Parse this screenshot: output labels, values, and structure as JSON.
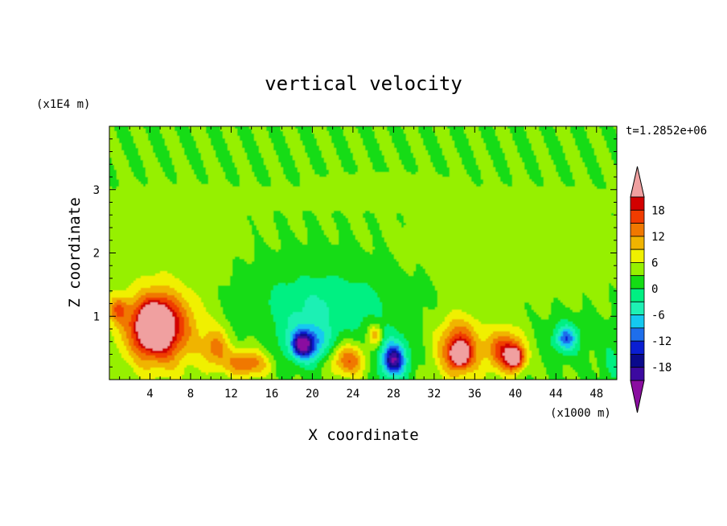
{
  "chart_data": {
    "type": "heatmap",
    "title": "vertical velocity",
    "xlabel": "X coordinate",
    "ylabel": "Z coordinate",
    "x_unit": "(x1000 m)",
    "y_unit": "(x1E4 m)",
    "time_label": "t=1.2852e+06",
    "xlim": [
      0,
      50
    ],
    "ylim": [
      0,
      4
    ],
    "x_ticks": [
      4,
      8,
      12,
      16,
      20,
      24,
      28,
      32,
      36,
      40,
      44,
      48
    ],
    "y_ticks": [
      1,
      2,
      3
    ],
    "colorbar": {
      "levels": [
        -21,
        -18,
        -15,
        -12,
        -9,
        -6,
        -3,
        0,
        3,
        6,
        9,
        12,
        15,
        18,
        21
      ],
      "tick_labels": [
        "18",
        "12",
        "6",
        "0",
        "-6",
        "-12",
        "-18"
      ],
      "tick_values": [
        18,
        12,
        6,
        0,
        -6,
        -12,
        -18
      ],
      "colors": [
        "#8a0ea0",
        "#3c0aa0",
        "#0a0a8c",
        "#0a1ed2",
        "#1e6eeb",
        "#14c8f0",
        "#1ef0b4",
        "#00f082",
        "#14dc14",
        "#96f000",
        "#f0f000",
        "#f0b400",
        "#f07800",
        "#f03c00",
        "#d20000",
        "#f0a0a0"
      ],
      "top_arrow": "#f0a0a0",
      "bottom_arrow": "#8a0ea0"
    },
    "background_value": 1,
    "features": [
      {
        "x": 5,
        "z": 0.8,
        "rx": 4.5,
        "rz": 0.75,
        "w": 5
      },
      {
        "x": 4.5,
        "z": 0.85,
        "rx": 2.2,
        "rz": 0.45,
        "w": 6
      },
      {
        "x": 4.2,
        "z": 0.85,
        "rx": 1.0,
        "rz": 0.25,
        "w": 7
      },
      {
        "x": 0.8,
        "z": 1.1,
        "rx": 1.2,
        "rz": 0.25,
        "w": 3
      },
      {
        "x": 13.5,
        "z": 0.25,
        "rx": 2.5,
        "rz": 0.25,
        "w": 4
      },
      {
        "x": 10.5,
        "z": 0.5,
        "rx": 1.5,
        "rz": 0.35,
        "w": 3
      },
      {
        "x": 19.5,
        "z": 0.6,
        "rx": 3.2,
        "rz": 0.45,
        "w": -2
      },
      {
        "x": 19.5,
        "z": 0.55,
        "rx": 2.0,
        "rz": 0.3,
        "w": -3
      },
      {
        "x": 19,
        "z": 0.55,
        "rx": 1.0,
        "rz": 0.2,
        "w": -5
      },
      {
        "x": 23.5,
        "z": 0.3,
        "rx": 2.0,
        "rz": 0.3,
        "w": 4
      },
      {
        "x": 26.2,
        "z": 0.7,
        "rx": 0.8,
        "rz": 0.2,
        "w": 3
      },
      {
        "x": 28,
        "z": 0.35,
        "rx": 2.0,
        "rz": 0.45,
        "w": -3
      },
      {
        "x": 28,
        "z": 0.3,
        "rx": 1.1,
        "rz": 0.25,
        "w": -5
      },
      {
        "x": 34.5,
        "z": 0.5,
        "rx": 2.5,
        "rz": 0.55,
        "w": 5
      },
      {
        "x": 34.5,
        "z": 0.4,
        "rx": 1.0,
        "rz": 0.2,
        "w": 6
      },
      {
        "x": 39,
        "z": 0.45,
        "rx": 2.0,
        "rz": 0.4,
        "w": 5
      },
      {
        "x": 40,
        "z": 0.35,
        "rx": 1.0,
        "rz": 0.2,
        "w": 6
      },
      {
        "x": 45,
        "z": 0.65,
        "rx": 2.0,
        "rz": 0.35,
        "w": -2
      },
      {
        "x": 45,
        "z": 0.65,
        "rx": 1.0,
        "rz": 0.2,
        "w": -3
      },
      {
        "x": 49.5,
        "z": 0.3,
        "rx": 1.5,
        "rz": 0.6,
        "w": -1
      },
      {
        "x": 21,
        "z": 1.2,
        "rx": 8.0,
        "rz": 0.6,
        "w": -2
      },
      {
        "x": 6,
        "z": 2.1,
        "rx": 7.0,
        "rz": 0.7,
        "w": 0.4
      },
      {
        "x": 40,
        "z": 1.9,
        "rx": 11.0,
        "rz": 0.75,
        "w": 0.4
      },
      {
        "x": 25,
        "z": 2.85,
        "rx": 24.0,
        "rz": 0.15,
        "w": 0.4
      },
      {
        "x": 27,
        "z": 3.15,
        "rx": 5.0,
        "rz": 0.08,
        "w": 0.4
      }
    ]
  }
}
